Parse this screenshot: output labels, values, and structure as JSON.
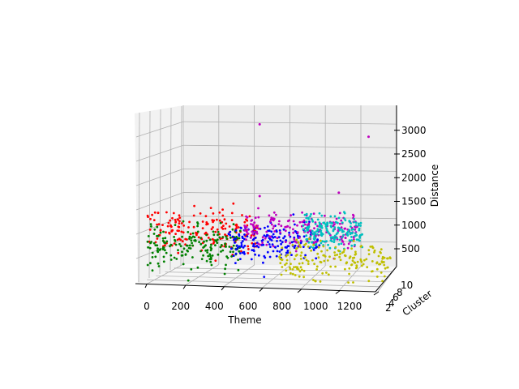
{
  "chart_data": {
    "type": "scatter",
    "projection": "3d",
    "title": "",
    "xlabel": "Theme",
    "ylabel": "Cluster",
    "zlabel": "Distance",
    "xlim": [
      0,
      1200
    ],
    "ylim": [
      0,
      10
    ],
    "zlim": [
      0,
      3200
    ],
    "x_ticks": [
      "0",
      "200",
      "400",
      "600",
      "800",
      "1000",
      "1200"
    ],
    "y_ticks": [
      "2",
      "4",
      "6",
      "8",
      "10"
    ],
    "z_ticks": [
      "500",
      "1000",
      "1500",
      "2000",
      "2500",
      "3000"
    ],
    "grid": true,
    "legend": false,
    "series": [
      {
        "color": "#ff0000",
        "x_range": [
          0,
          560
        ],
        "cluster": 1,
        "z_center": 1080,
        "z_spread": 220,
        "outliers": []
      },
      {
        "color": "#008000",
        "x_range": [
          0,
          480
        ],
        "cluster": 0,
        "z_center": 800,
        "z_spread": 200,
        "outliers": []
      },
      {
        "color": "#0000ff",
        "x_range": [
          400,
          860
        ],
        "cluster": 4,
        "z_center": 840,
        "z_spread": 170,
        "outliers": []
      },
      {
        "color": "#bf00bf",
        "x_range": [
          480,
          1060
        ],
        "cluster": 3,
        "z_center": 1120,
        "z_spread": 190,
        "outliers": [
          {
            "x": 560,
            "z": 3150
          },
          {
            "x": 1110,
            "z": 2980
          },
          {
            "x": 960,
            "z": 1870
          },
          {
            "x": 560,
            "z": 1750
          }
        ]
      },
      {
        "color": "#00bfbf",
        "x_range": [
          770,
          1070
        ],
        "cluster": 6,
        "z_center": 1040,
        "z_spread": 170,
        "outliers": []
      },
      {
        "color": "#bfbf00",
        "x_range": [
          640,
          1200
        ],
        "cluster": 9,
        "z_center": 420,
        "z_spread": 180,
        "outliers": []
      }
    ]
  }
}
